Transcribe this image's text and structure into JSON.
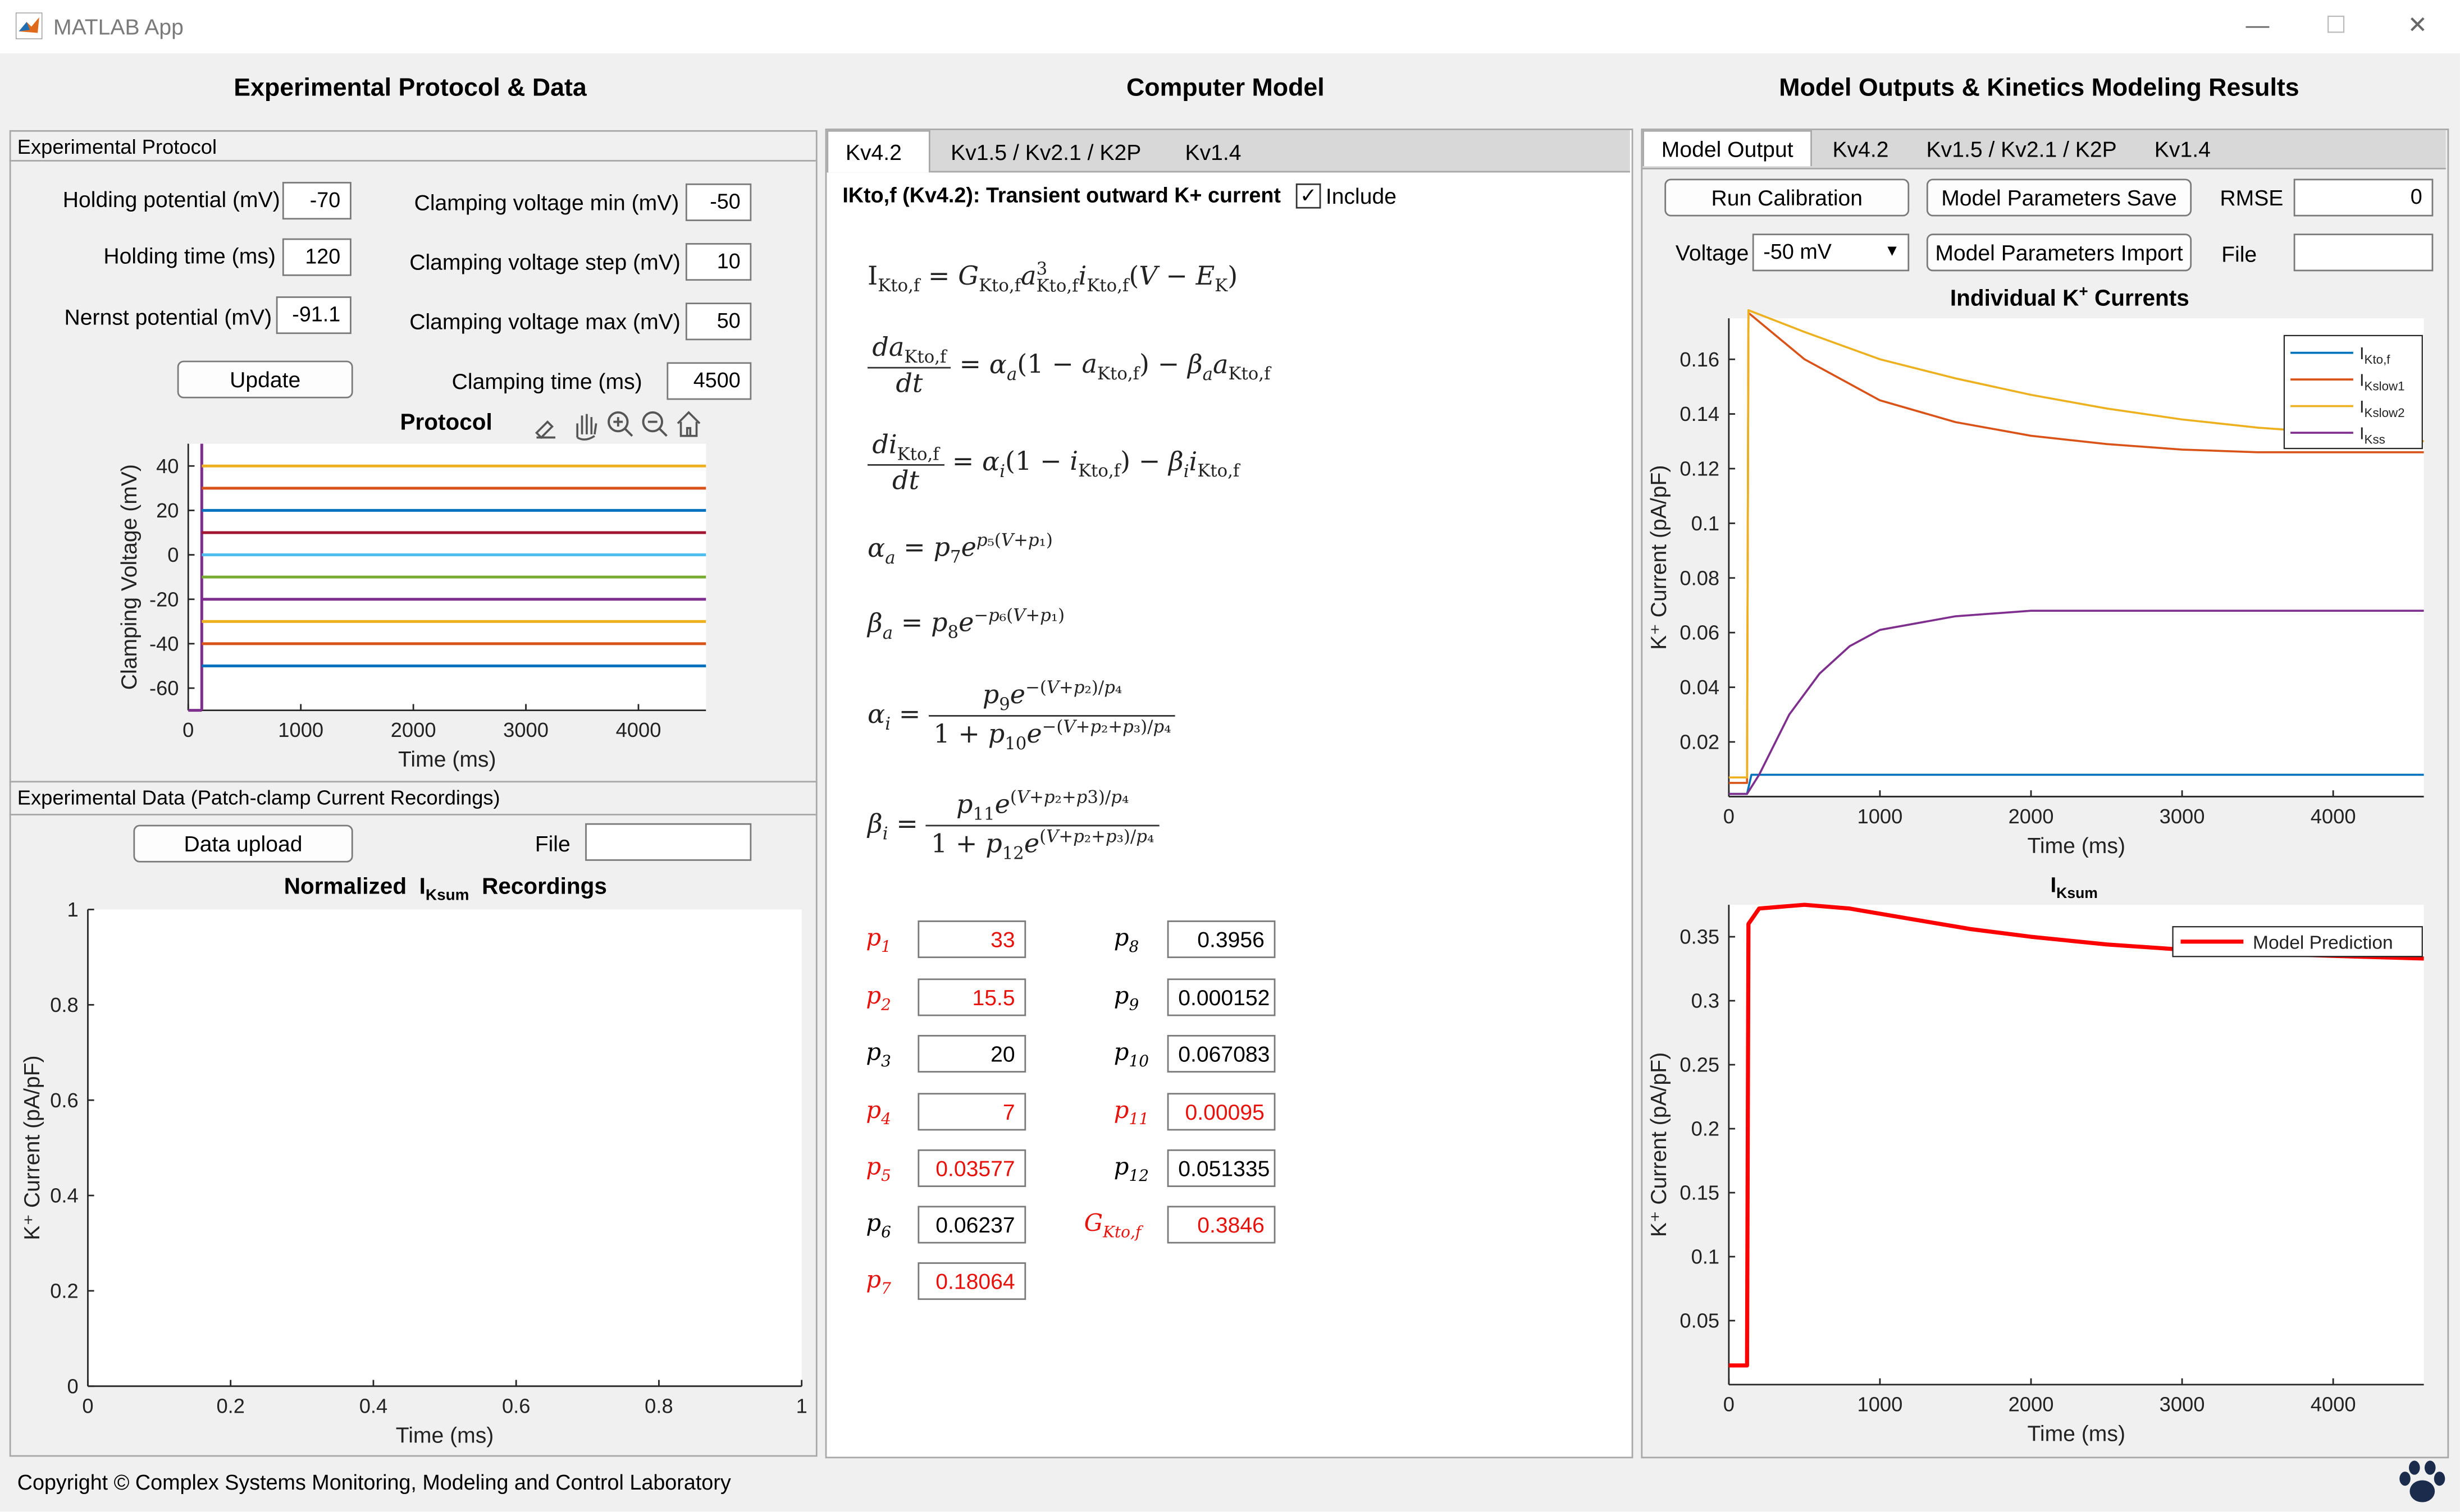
{
  "window": {
    "title": "MATLAB App",
    "minimize": "—",
    "maximize": "☐",
    "close": "✕"
  },
  "columns": {
    "left_title": "Experimental Protocol & Data",
    "middle_title": "Computer Model",
    "right_title": "Model Outputs & Kinetics Modeling Results"
  },
  "protocol": {
    "panel_title": "Experimental Protocol",
    "holding_potential_label": "Holding potential (mV)",
    "holding_potential": "-70",
    "holding_time_label": "Holding time (ms)",
    "holding_time": "120",
    "nernst_label": "Nernst potential (mV)",
    "nernst": "-91.1",
    "vmin_label": "Clamping voltage min (mV)",
    "vmin": "-50",
    "vstep_label": "Clamping voltage step (mV)",
    "vstep": "10",
    "vmax_label": "Clamping voltage max (mV)",
    "vmax": "50",
    "ctime_label": "Clamping time (ms)",
    "ctime": "4500",
    "update_button": "Update",
    "toolbar_icons": [
      "brush-icon",
      "pan-hand-icon",
      "zoom-in-icon",
      "zoom-out-icon",
      "home-icon"
    ]
  },
  "data_panel": {
    "panel_title": "Experimental Data (Patch-clamp Current Recordings)",
    "upload_button": "Data upload",
    "file_label": "File",
    "file_value": ""
  },
  "model": {
    "tabs": [
      "Kv4.2",
      "Kv1.5 / Kv2.1 / K2P",
      "Kv1.4"
    ],
    "active_tab": 0,
    "current_title": "IKto,f (Kv4.2): Transient outward K+ current",
    "include_label": "Include",
    "include_checked": true,
    "params": [
      {
        "name": "p1",
        "base": "p",
        "sub": "1",
        "value": "33",
        "highlight": true
      },
      {
        "name": "p2",
        "base": "p",
        "sub": "2",
        "value": "15.5",
        "highlight": true
      },
      {
        "name": "p3",
        "base": "p",
        "sub": "3",
        "value": "20",
        "highlight": false
      },
      {
        "name": "p4",
        "base": "p",
        "sub": "4",
        "value": "7",
        "highlight": true
      },
      {
        "name": "p5",
        "base": "p",
        "sub": "5",
        "value": "0.03577",
        "highlight": true
      },
      {
        "name": "p6",
        "base": "p",
        "sub": "6",
        "value": "0.06237",
        "highlight": false
      },
      {
        "name": "p7",
        "base": "p",
        "sub": "7",
        "value": "0.18064",
        "highlight": true
      },
      {
        "name": "p8",
        "base": "p",
        "sub": "8",
        "value": "0.3956",
        "highlight": false
      },
      {
        "name": "p9",
        "base": "p",
        "sub": "9",
        "value": "0.000152",
        "highlight": false
      },
      {
        "name": "p10",
        "base": "p",
        "sub": "10",
        "value": "0.067083",
        "highlight": false
      },
      {
        "name": "p11",
        "base": "p",
        "sub": "11",
        "value": "0.00095",
        "highlight": true
      },
      {
        "name": "p12",
        "base": "p",
        "sub": "12",
        "value": "0.051335",
        "highlight": false
      },
      {
        "name": "GKtof",
        "base": "G",
        "sub": "Kto,f",
        "value": "0.3846",
        "highlight": true
      }
    ]
  },
  "outputs": {
    "tabs": [
      "Model Output",
      "Kv4.2",
      "Kv1.5 / Kv2.1 / K2P",
      "Kv1.4"
    ],
    "active_tab": 0,
    "run_button": "Run Calibration",
    "save_button": "Model Parameters Save",
    "import_button": "Model Parameters Import",
    "rmse_label": "RMSE",
    "rmse_value": "0",
    "voltage_label": "Voltage",
    "voltage_value": "-50 mV",
    "file_label": "File",
    "file_value": ""
  },
  "footer": {
    "copyright": "Copyright ©  Complex Systems Monitoring, Modeling and Control Laboratory"
  },
  "chart_data": [
    {
      "type": "line",
      "title": "Protocol",
      "xlabel": "Time (ms)",
      "ylabel": "Clamping Voltage (mV)",
      "xlim": [
        0,
        4600
      ],
      "ylim": [
        -70,
        50
      ],
      "xticks": [
        0,
        1000,
        2000,
        3000,
        4000
      ],
      "yticks": [
        40,
        20,
        0,
        -20,
        -40,
        -60
      ],
      "series": [
        {
          "values": [
            40
          ],
          "color": "#edb120"
        },
        {
          "values": [
            30
          ],
          "color": "#d95319"
        },
        {
          "values": [
            20
          ],
          "color": "#0072bd"
        },
        {
          "values": [
            10
          ],
          "color": "#a2142f"
        },
        {
          "values": [
            0
          ],
          "color": "#4dbeee"
        },
        {
          "values": [
            -10
          ],
          "color": "#77ac30"
        },
        {
          "values": [
            -20
          ],
          "color": "#7e2f8e"
        },
        {
          "values": [
            -30
          ],
          "color": "#edb120"
        },
        {
          "values": [
            -40
          ],
          "color": "#d95319"
        },
        {
          "values": [
            -50
          ],
          "color": "#0072bd"
        }
      ],
      "holding": {
        "value": -70,
        "until_ms": 120,
        "color": "#7e2f8e"
      }
    },
    {
      "type": "line",
      "title": "Normalized",
      "title_sym": "I",
      "title_sub": "Ksum",
      "title_tail": "Recordings",
      "xlabel": "Time (ms)",
      "ylabel": "K⁺ Current  (pA/pF)",
      "xlim": [
        0,
        1
      ],
      "ylim": [
        0,
        1
      ],
      "xticks": [
        "0",
        "0.2",
        "0.4",
        "0.6",
        "0.8",
        "1"
      ],
      "yticks": [
        "1",
        "0.8",
        "0.6",
        "0.4",
        "0.2",
        "0"
      ],
      "series": []
    },
    {
      "type": "line",
      "title": "Individual  K",
      "title_sup": "+",
      "title_tail": " Currents",
      "xlabel": "Time (ms)",
      "ylabel": "K⁺ Current  (pA/pF)",
      "xlim": [
        0,
        4600
      ],
      "ylim": [
        0,
        0.175
      ],
      "xticks": [
        0,
        1000,
        2000,
        3000,
        4000
      ],
      "yticks": [
        0.16,
        0.14,
        0.12,
        0.1,
        0.08,
        0.06,
        0.04,
        0.02
      ],
      "series": [
        {
          "name": "I",
          "sub": "Kto,f",
          "color": "#0072bd",
          "x": [
            0,
            120,
            150,
            4600
          ],
          "y": [
            0.001,
            0.001,
            0.008,
            0.008
          ]
        },
        {
          "name": "I",
          "sub": "Kslow1",
          "color": "#d95319",
          "x": [
            0,
            120,
            130,
            500,
            1000,
            1500,
            2000,
            2500,
            3000,
            3500,
            4000,
            4600
          ],
          "y": [
            0.005,
            0.005,
            0.177,
            0.16,
            0.145,
            0.137,
            0.132,
            0.129,
            0.127,
            0.126,
            0.126,
            0.126
          ]
        },
        {
          "name": "I",
          "sub": "Kslow2",
          "color": "#edb120",
          "x": [
            0,
            120,
            130,
            500,
            1000,
            1500,
            2000,
            2500,
            3000,
            3500,
            4000,
            4600
          ],
          "y": [
            0.007,
            0.007,
            0.178,
            0.17,
            0.16,
            0.153,
            0.147,
            0.142,
            0.138,
            0.135,
            0.133,
            0.13
          ]
        },
        {
          "name": "I",
          "sub": "Kss",
          "color": "#7e2f8e",
          "x": [
            0,
            120,
            200,
            400,
            600,
            800,
            1000,
            1500,
            2000,
            2500,
            3000,
            4600
          ],
          "y": [
            0.001,
            0.001,
            0.008,
            0.03,
            0.045,
            0.055,
            0.061,
            0.066,
            0.068,
            0.068,
            0.068,
            0.068
          ]
        }
      ],
      "legend": "top-right"
    },
    {
      "type": "line",
      "title": "I",
      "title_sub": "Ksum",
      "xlabel": "Time (ms)",
      "ylabel": "K⁺ Current  (pA/pF)",
      "xlim": [
        0,
        4600
      ],
      "ylim": [
        0,
        0.375
      ],
      "xticks": [
        0,
        1000,
        2000,
        3000,
        4000
      ],
      "yticks": [
        0.35,
        0.3,
        0.25,
        0.2,
        0.15,
        0.1,
        0.05
      ],
      "series": [
        {
          "name": "Model Prediction",
          "color": "#ff0000",
          "x": [
            0,
            120,
            130,
            200,
            500,
            800,
            1200,
            1600,
            2000,
            2500,
            3000,
            3500,
            4000,
            4600
          ],
          "y": [
            0.015,
            0.015,
            0.36,
            0.372,
            0.375,
            0.372,
            0.364,
            0.356,
            0.35,
            0.344,
            0.34,
            0.337,
            0.335,
            0.333
          ]
        }
      ],
      "legend": "top-right"
    }
  ]
}
